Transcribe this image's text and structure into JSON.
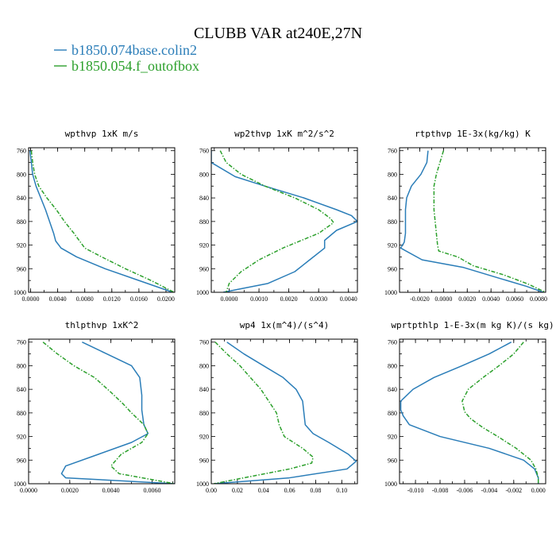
{
  "chart_data": {
    "title": "CLUBB VAR at240E,27N",
    "legend": [
      {
        "name": "b1850.074base.colin2",
        "color": "#2a7db8",
        "dash": "solid"
      },
      {
        "name": "b1850.054.f_outofbox",
        "color": "#2ca02c",
        "dash": "dashdot"
      }
    ],
    "panels": [
      {
        "type": "line",
        "title": "wpthvp   1xK m/s",
        "xlim": [
          -0.0003,
          0.0213
        ],
        "xticks": [
          "0.0000",
          "0.0040",
          "0.0080",
          "0.0120",
          "0.0160",
          "0.0200"
        ],
        "xtick_values": [
          0,
          0.004,
          0.008,
          0.012,
          0.016,
          0.02
        ],
        "ylim": [
          1000,
          755
        ],
        "yticks": [
          760,
          800,
          840,
          880,
          920,
          960,
          1000
        ],
        "series": [
          {
            "p": [
              760,
              780,
              800,
              820,
              840,
              860,
              880,
              900,
              913,
              925,
              940,
              960,
              980,
              1000
            ],
            "x": [
              -0.0001,
              0.0001,
              0.0003,
              0.0008,
              0.0015,
              0.0022,
              0.0028,
              0.0034,
              0.0037,
              0.0045,
              0.0068,
              0.011,
              0.016,
              0.021
            ]
          },
          {
            "p": [
              760,
              780,
              800,
              820,
              840,
              860,
              880,
              900,
              925,
              940,
              960,
              980,
              1000
            ],
            "x": [
              0.0001,
              0.0003,
              0.0006,
              0.0012,
              0.0024,
              0.0038,
              0.005,
              0.0064,
              0.008,
              0.0105,
              0.014,
              0.0178,
              0.0212
            ]
          }
        ]
      },
      {
        "type": "line",
        "title": "wp2thvp   1xK m^2/s^2",
        "xlim": [
          -0.0006,
          0.0043
        ],
        "xticks": [
          "0.0000",
          "0.0010",
          "0.0020",
          "0.0030",
          "0.0040"
        ],
        "xtick_values": [
          0,
          0.001,
          0.002,
          0.003,
          0.004
        ],
        "ylim": [
          1000,
          755
        ],
        "yticks": [
          760,
          800,
          840,
          880,
          920,
          960,
          1000
        ],
        "series": [
          {
            "p": [
              760,
              780,
              804,
              820,
              840,
              860,
              870,
              880,
              895,
              912,
              925,
              945,
              965,
              985,
              995,
              1000
            ],
            "x": [
              -0.0006,
              -0.0006,
              0.0002,
              0.0012,
              0.0025,
              0.0036,
              0.0041,
              0.0043,
              0.0036,
              0.0032,
              0.0032,
              0.0027,
              0.0022,
              0.0013,
              0.0003,
              -0.0002
            ]
          },
          {
            "p": [
              760,
              780,
              800,
              820,
              840,
              860,
              875,
              882,
              900,
              925,
              945,
              965,
              985,
              1000
            ],
            "x": [
              -0.0003,
              -0.0001,
              0.0004,
              0.0012,
              0.0022,
              0.003,
              0.0034,
              0.0035,
              0.003,
              0.0018,
              0.001,
              0.0004,
              0.0,
              -0.0001
            ]
          }
        ]
      },
      {
        "type": "line",
        "title": "rtpthvp   1E-3x(kg/kg) K",
        "xlim": [
          -0.0037,
          0.0086
        ],
        "xticks": [
          "-0.0020",
          "0.0000",
          "0.0020",
          "0.0040",
          "0.0060",
          "0.0080"
        ],
        "xtick_values": [
          -0.002,
          0,
          0.002,
          0.004,
          0.006,
          0.008
        ],
        "ylim": [
          1000,
          755
        ],
        "yticks": [
          760,
          800,
          840,
          880,
          920,
          960,
          1000
        ],
        "series": [
          {
            "p": [
              760,
              780,
              800,
              820,
              840,
              860,
              880,
              900,
              915,
              925,
              945,
              958,
              975,
              990,
              1000
            ],
            "x": [
              -0.0013,
              -0.0014,
              -0.0019,
              -0.0027,
              -0.0031,
              -0.0032,
              -0.0032,
              -0.0032,
              -0.0033,
              -0.0036,
              -0.0018,
              0.0017,
              0.0045,
              0.007,
              0.0084
            ]
          },
          {
            "p": [
              760,
              780,
              800,
              820,
              840,
              860,
              880,
              900,
              920,
              930,
              940,
              955,
              970,
              985,
              1000
            ],
            "x": [
              0.0,
              -0.0003,
              -0.0006,
              -0.0008,
              -0.0008,
              -0.0008,
              -0.0007,
              -0.0006,
              -0.0005,
              -0.0004,
              0.0012,
              0.0025,
              0.005,
              0.007,
              0.0086
            ]
          }
        ]
      },
      {
        "type": "line",
        "title": "thlpthvp   1xK^2",
        "xlim": [
          0.0,
          0.0071
        ],
        "xticks": [
          "0.0000",
          "0.0020",
          "0.0040",
          "0.0060"
        ],
        "xtick_values": [
          0,
          0.002,
          0.004,
          0.006
        ],
        "ylim": [
          1000,
          755
        ],
        "yticks": [
          760,
          800,
          840,
          880,
          920,
          960,
          1000
        ],
        "series": [
          {
            "p": [
              760,
              780,
              800,
              820,
              850,
              875,
              900,
              915,
              930,
              950,
              970,
              983,
              990,
              1000
            ],
            "x": [
              0.0026,
              0.0038,
              0.005,
              0.0054,
              0.0055,
              0.0055,
              0.0056,
              0.0058,
              0.005,
              0.0034,
              0.0018,
              0.0016,
              0.0018,
              0.0071
            ]
          },
          {
            "p": [
              760,
              780,
              800,
              820,
              845,
              865,
              880,
              900,
              915,
              930,
              950,
              970,
              983,
              1000
            ],
            "x": [
              0.0007,
              0.0014,
              0.0022,
              0.0032,
              0.004,
              0.0046,
              0.005,
              0.0056,
              0.0058,
              0.0055,
              0.0045,
              0.004,
              0.0044,
              0.0071
            ]
          }
        ]
      },
      {
        "type": "line",
        "title": "wp4   1x(m^4)/(s^4)",
        "xlim": [
          0.0,
          0.112
        ],
        "xticks": [
          "0.00",
          "0.02",
          "0.04",
          "0.06",
          "0.08",
          "0.10"
        ],
        "xtick_values": [
          0,
          0.02,
          0.04,
          0.06,
          0.08,
          0.1
        ],
        "ylim": [
          1000,
          755
        ],
        "yticks": [
          760,
          800,
          840,
          880,
          920,
          960,
          1000
        ],
        "series": [
          {
            "p": [
              760,
              780,
              800,
              820,
              840,
              860,
              880,
              900,
              915,
              930,
              950,
              962,
              975,
              990,
              1000
            ],
            "x": [
              0.012,
              0.025,
              0.04,
              0.055,
              0.065,
              0.07,
              0.071,
              0.072,
              0.078,
              0.09,
              0.105,
              0.111,
              0.104,
              0.06,
              0.002
            ]
          },
          {
            "p": [
              760,
              780,
              800,
              820,
              840,
              860,
              880,
              900,
              920,
              940,
              955,
              965,
              975,
              990,
              1000
            ],
            "x": [
              0.003,
              0.012,
              0.022,
              0.03,
              0.038,
              0.044,
              0.05,
              0.052,
              0.056,
              0.07,
              0.078,
              0.077,
              0.06,
              0.025,
              0.002
            ]
          }
        ]
      },
      {
        "type": "line",
        "title": "wprtpthlp   1-E-3x(m kg K)/(s kg)",
        "xlim": [
          -0.0113,
          0.0006
        ],
        "xticks": [
          "-0.010",
          "-0.008",
          "-0.006",
          "-0.004",
          "-0.002",
          "0.000"
        ],
        "xtick_values": [
          -0.01,
          -0.008,
          -0.006,
          -0.004,
          -0.002,
          0
        ],
        "ylim": [
          1000,
          755
        ],
        "yticks": [
          760,
          800,
          840,
          880,
          920,
          960,
          1000
        ],
        "series": [
          {
            "p": [
              760,
              780,
              800,
              820,
              840,
              860,
              875,
              885,
              900,
              920,
              940,
              960,
              975,
              990,
              1000
            ],
            "x": [
              -0.0022,
              -0.004,
              -0.0062,
              -0.0085,
              -0.0102,
              -0.0112,
              -0.0112,
              -0.011,
              -0.0105,
              -0.008,
              -0.004,
              -0.0012,
              -0.0003,
              0.0,
              0.0
            ]
          },
          {
            "p": [
              760,
              780,
              800,
              820,
              840,
              860,
              878,
              890,
              905,
              920,
              940,
              960,
              975,
              990,
              1000
            ],
            "x": [
              -0.0012,
              -0.002,
              -0.0032,
              -0.0045,
              -0.0057,
              -0.0062,
              -0.006,
              -0.0055,
              -0.0045,
              -0.0033,
              -0.0018,
              -0.0006,
              -0.0002,
              0.0,
              0.0
            ]
          }
        ]
      }
    ]
  }
}
